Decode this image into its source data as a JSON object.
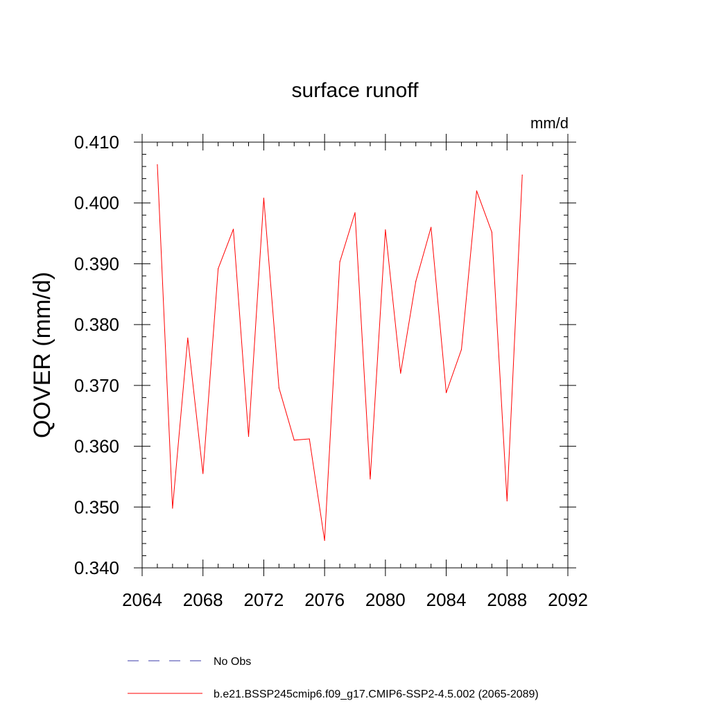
{
  "chart_data": {
    "type": "line",
    "title": "surface runoff",
    "units": "mm/d",
    "ylabel": "QOVER  (mm/d)",
    "xlabel": "",
    "xlim": [
      2064,
      2092
    ],
    "ylim": [
      0.34,
      0.41
    ],
    "xticks": [
      "2064",
      "2068",
      "2072",
      "2076",
      "2080",
      "2084",
      "2088",
      "2092"
    ],
    "yticks": [
      "0.340",
      "0.350",
      "0.360",
      "0.370",
      "0.380",
      "0.390",
      "0.400",
      "0.410"
    ],
    "grid": false,
    "legend_position": "bottom",
    "x": [
      2065,
      2066,
      2067,
      2068,
      2069,
      2070,
      2071,
      2072,
      2073,
      2074,
      2075,
      2076,
      2077,
      2078,
      2079,
      2080,
      2081,
      2082,
      2083,
      2084,
      2085,
      2086,
      2087,
      2088,
      2089
    ],
    "series": [
      {
        "name": "b.e21.BSSP245cmip6.f09_g17.CMIP6-SSP2-4.5.002 (2065-2089)",
        "color": "#ff0000",
        "dash": "solid",
        "values": [
          0.4063,
          0.3498,
          0.3778,
          0.3555,
          0.3892,
          0.3957,
          0.3616,
          0.4008,
          0.3696,
          0.361,
          0.3612,
          0.3445,
          0.3903,
          0.3984,
          0.3546,
          0.3956,
          0.372,
          0.3871,
          0.396,
          0.3688,
          0.3759,
          0.402,
          0.3952,
          0.351,
          0.4046
        ]
      }
    ],
    "legend": [
      {
        "label": "No Obs",
        "color": "#3a3aaa",
        "dash": "dashed"
      },
      {
        "label": "b.e21.BSSP245cmip6.f09_g17.CMIP6-SSP2-4.5.002 (2065-2089)",
        "color": "#ff0000",
        "dash": "solid"
      }
    ]
  }
}
